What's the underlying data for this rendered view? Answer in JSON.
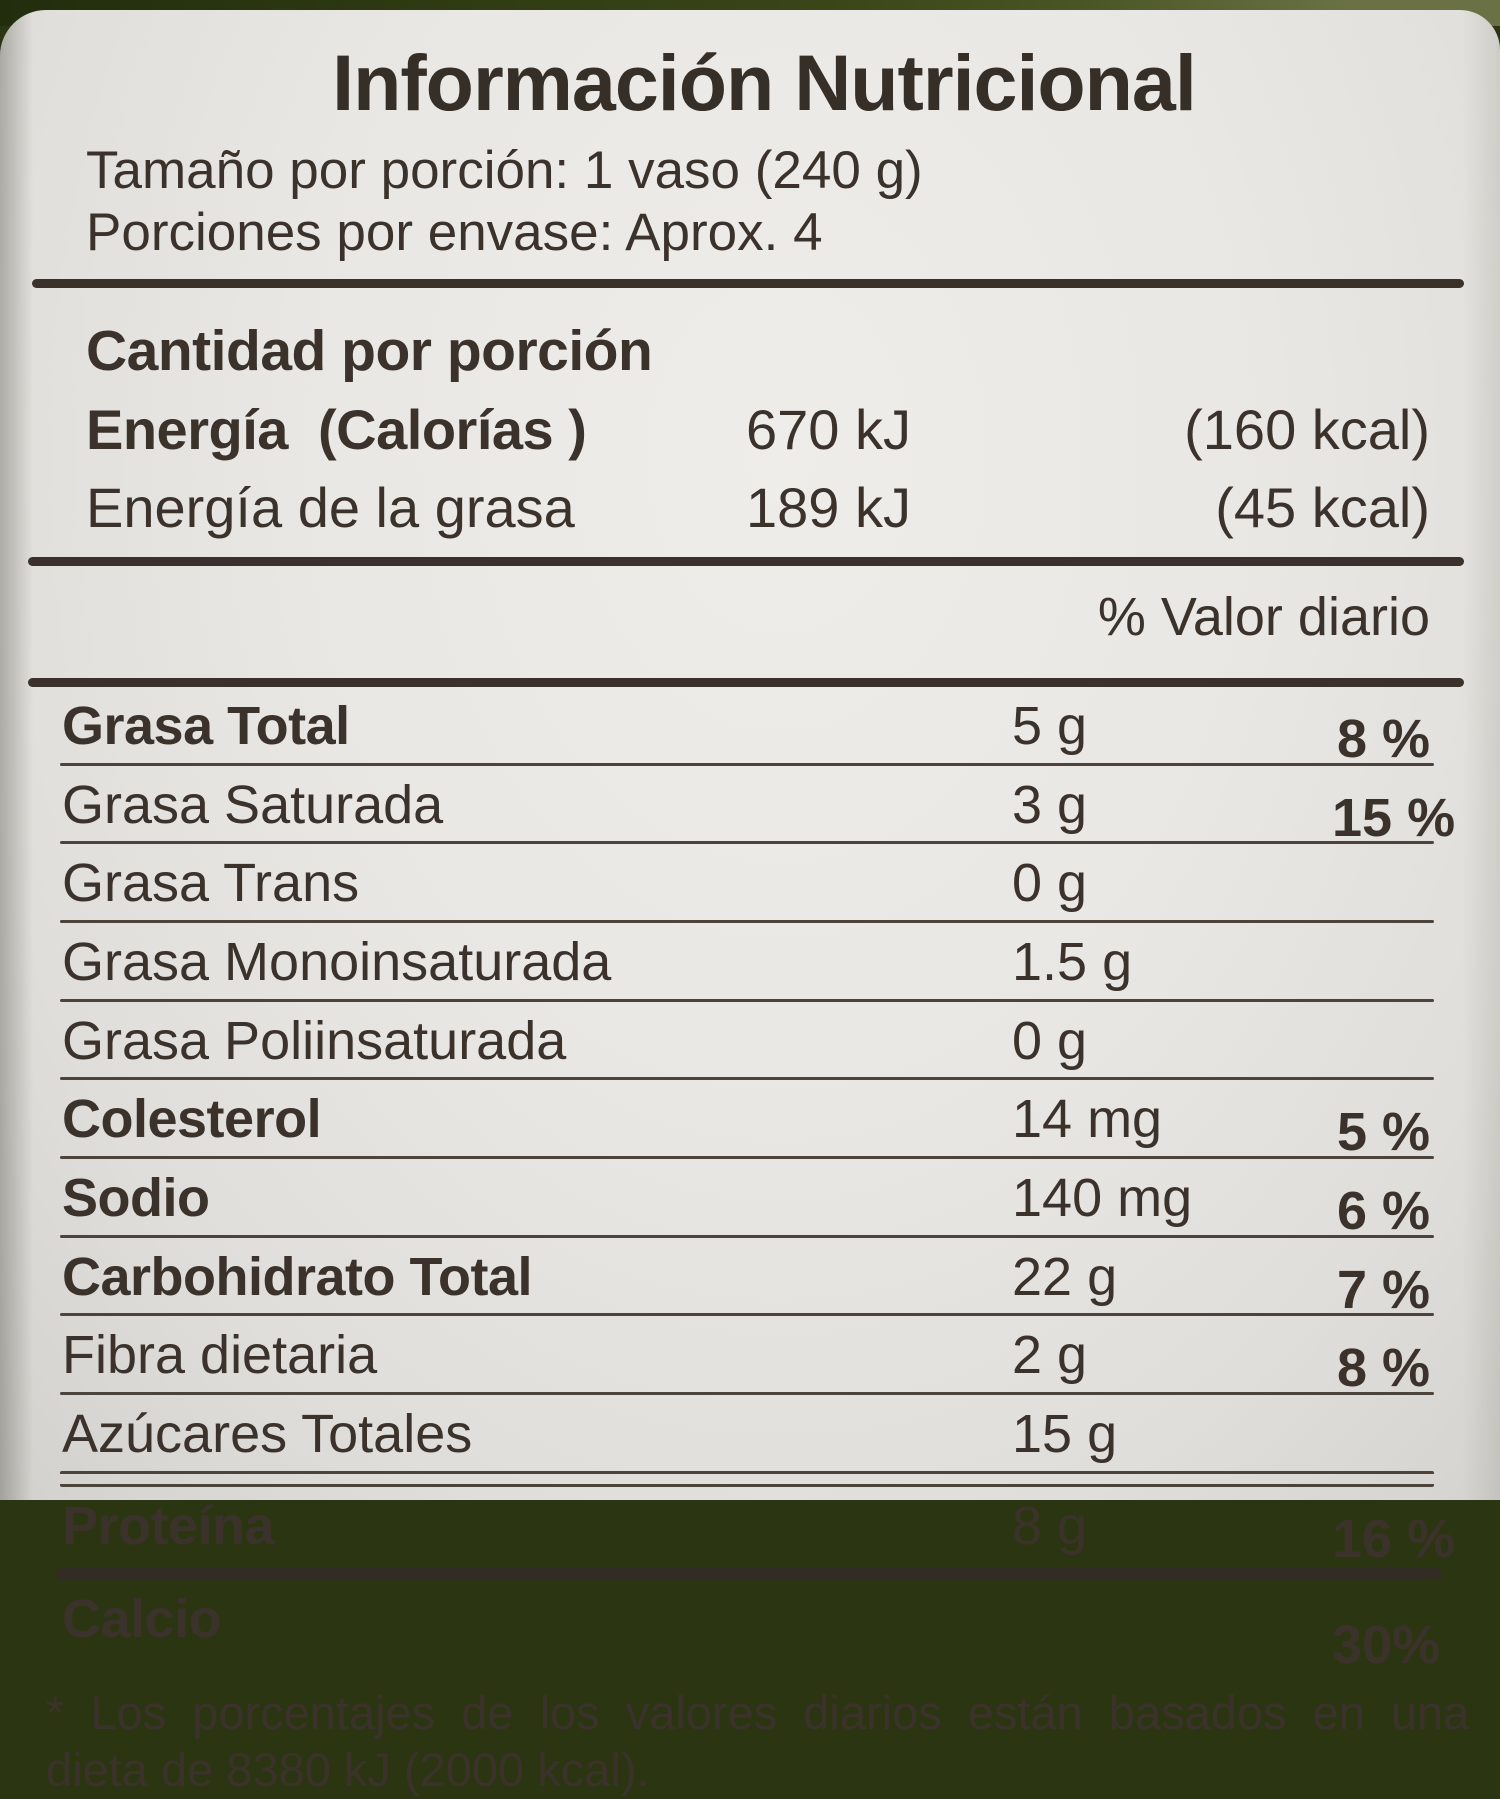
{
  "label": {
    "title": "Información Nutricional",
    "serving_size": "Tamaño por porción: 1 vaso (240 g)",
    "servings_per_container": "Porciones por envase: Aprox. 4",
    "amount_header": "Cantidad por porción",
    "energy_rows": [
      {
        "name": "Energía  (Calorías )",
        "kj": "670 kJ",
        "kcal": "(160 kcal)"
      },
      {
        "name": "Energía de la grasa",
        "kj": "189 kJ",
        "kcal": "(45 kcal)"
      }
    ],
    "daily_value_header": "% Valor diario",
    "nutrients": [
      {
        "name": "Grasa Total",
        "amount": "5 g",
        "dv": "8 %"
      },
      {
        "name": "Grasa Saturada",
        "amount": "3 g",
        "dv": "15 %"
      },
      {
        "name": "Grasa Trans",
        "amount": "0 g",
        "dv": ""
      },
      {
        "name": "Grasa Monoinsaturada",
        "amount": "1.5 g",
        "dv": ""
      },
      {
        "name": "Grasa Poliinsaturada",
        "amount": "0 g",
        "dv": ""
      },
      {
        "name": "Colesterol",
        "amount": "14 mg",
        "dv": "5 %"
      },
      {
        "name": "Sodio",
        "amount": "140 mg",
        "dv": "6 %"
      },
      {
        "name": "Carbohidrato Total",
        "amount": "22 g",
        "dv": "7 %"
      },
      {
        "name": "Fibra dietaria",
        "amount": "2 g",
        "dv": "8 %"
      },
      {
        "name": "Azúcares Totales",
        "amount": "15 g",
        "dv": ""
      },
      {
        "name": "Proteína",
        "amount": "8 g",
        "dv": "16 %"
      },
      {
        "name": "Calcio",
        "amount": "",
        "dv": "30%"
      }
    ],
    "footnote_line1": "* Los porcentajes de los valores diarios están basados en una",
    "footnote_line2": "dieta de 8380 kJ (2000 kcal).",
    "colors": {
      "ink": "#3b332b",
      "label_bg": "#e9e7e3",
      "backdrop_green": "#2c3511"
    }
  }
}
